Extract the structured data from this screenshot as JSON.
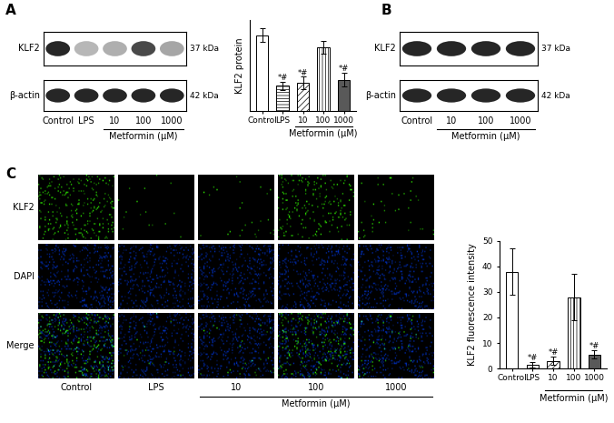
{
  "panel_labels": [
    "A",
    "B",
    "C"
  ],
  "blots": [
    {
      "rows": [
        {
          "label": "KLF2",
          "size": "37 kDa"
        },
        {
          "label": "β-actin",
          "size": "42 kDa"
        }
      ],
      "lanes": [
        "Control",
        "LPS",
        "10",
        "100",
        "1000"
      ],
      "group": "Metformin (μM)",
      "group_lanes": [
        "10",
        "100",
        "1000"
      ]
    },
    {
      "rows": [
        {
          "label": "KLF2",
          "size": "37 kDa"
        },
        {
          "label": "β-actin",
          "size": "42 kDa"
        }
      ],
      "lanes": [
        "Control",
        "10",
        "100",
        "1000"
      ],
      "group": "Metformin (μM)",
      "group_lanes": [
        "10",
        "100",
        "1000"
      ]
    }
  ],
  "fluorescence": {
    "rows": [
      "KLF2",
      "DAPI",
      "Merge"
    ],
    "columns": [
      "Control",
      "LPS",
      "10",
      "100",
      "1000"
    ],
    "group": "Metformin (μM)",
    "group_columns": [
      "10",
      "100",
      "1000"
    ]
  },
  "chart_data": [
    {
      "type": "bar",
      "y_label": "KLF2 protein",
      "categories": [
        "Control",
        "LPS",
        "10",
        "100",
        "1000"
      ],
      "values": [
        1.0,
        0.33,
        0.37,
        0.84,
        0.41
      ],
      "errors": [
        0.09,
        0.05,
        0.08,
        0.08,
        0.09
      ],
      "significance": [
        null,
        "*#",
        "*#",
        null,
        "*#"
      ],
      "colors": [
        "#ffffff",
        "#ffffff",
        "#ffffff",
        "#ffffff",
        "#595959"
      ],
      "group": "Metformin (μM)",
      "group_categories": [
        "10",
        "100",
        "1000"
      ],
      "ylim": [
        0,
        1.2
      ],
      "tick_labels": "x"
    },
    {
      "type": "bar",
      "y_label": "KLF2 fluorescence intensity",
      "categories": [
        "Control",
        "LPS",
        "10",
        "100",
        "1000"
      ],
      "values": [
        38,
        1.5,
        3,
        28,
        5.5
      ],
      "errors": [
        9,
        1,
        1.5,
        9,
        1.5
      ],
      "significance": [
        null,
        "*#",
        "*#",
        null,
        "*#"
      ],
      "colors": [
        "#ffffff",
        "#ffffff",
        "#ffffff",
        "#ffffff",
        "#595959"
      ],
      "group": "Metformin (μM)",
      "group_categories": [
        "10",
        "100",
        "1000"
      ],
      "ylim": [
        0,
        50
      ],
      "yticks": [
        0,
        10,
        20,
        30,
        40,
        50
      ]
    }
  ]
}
